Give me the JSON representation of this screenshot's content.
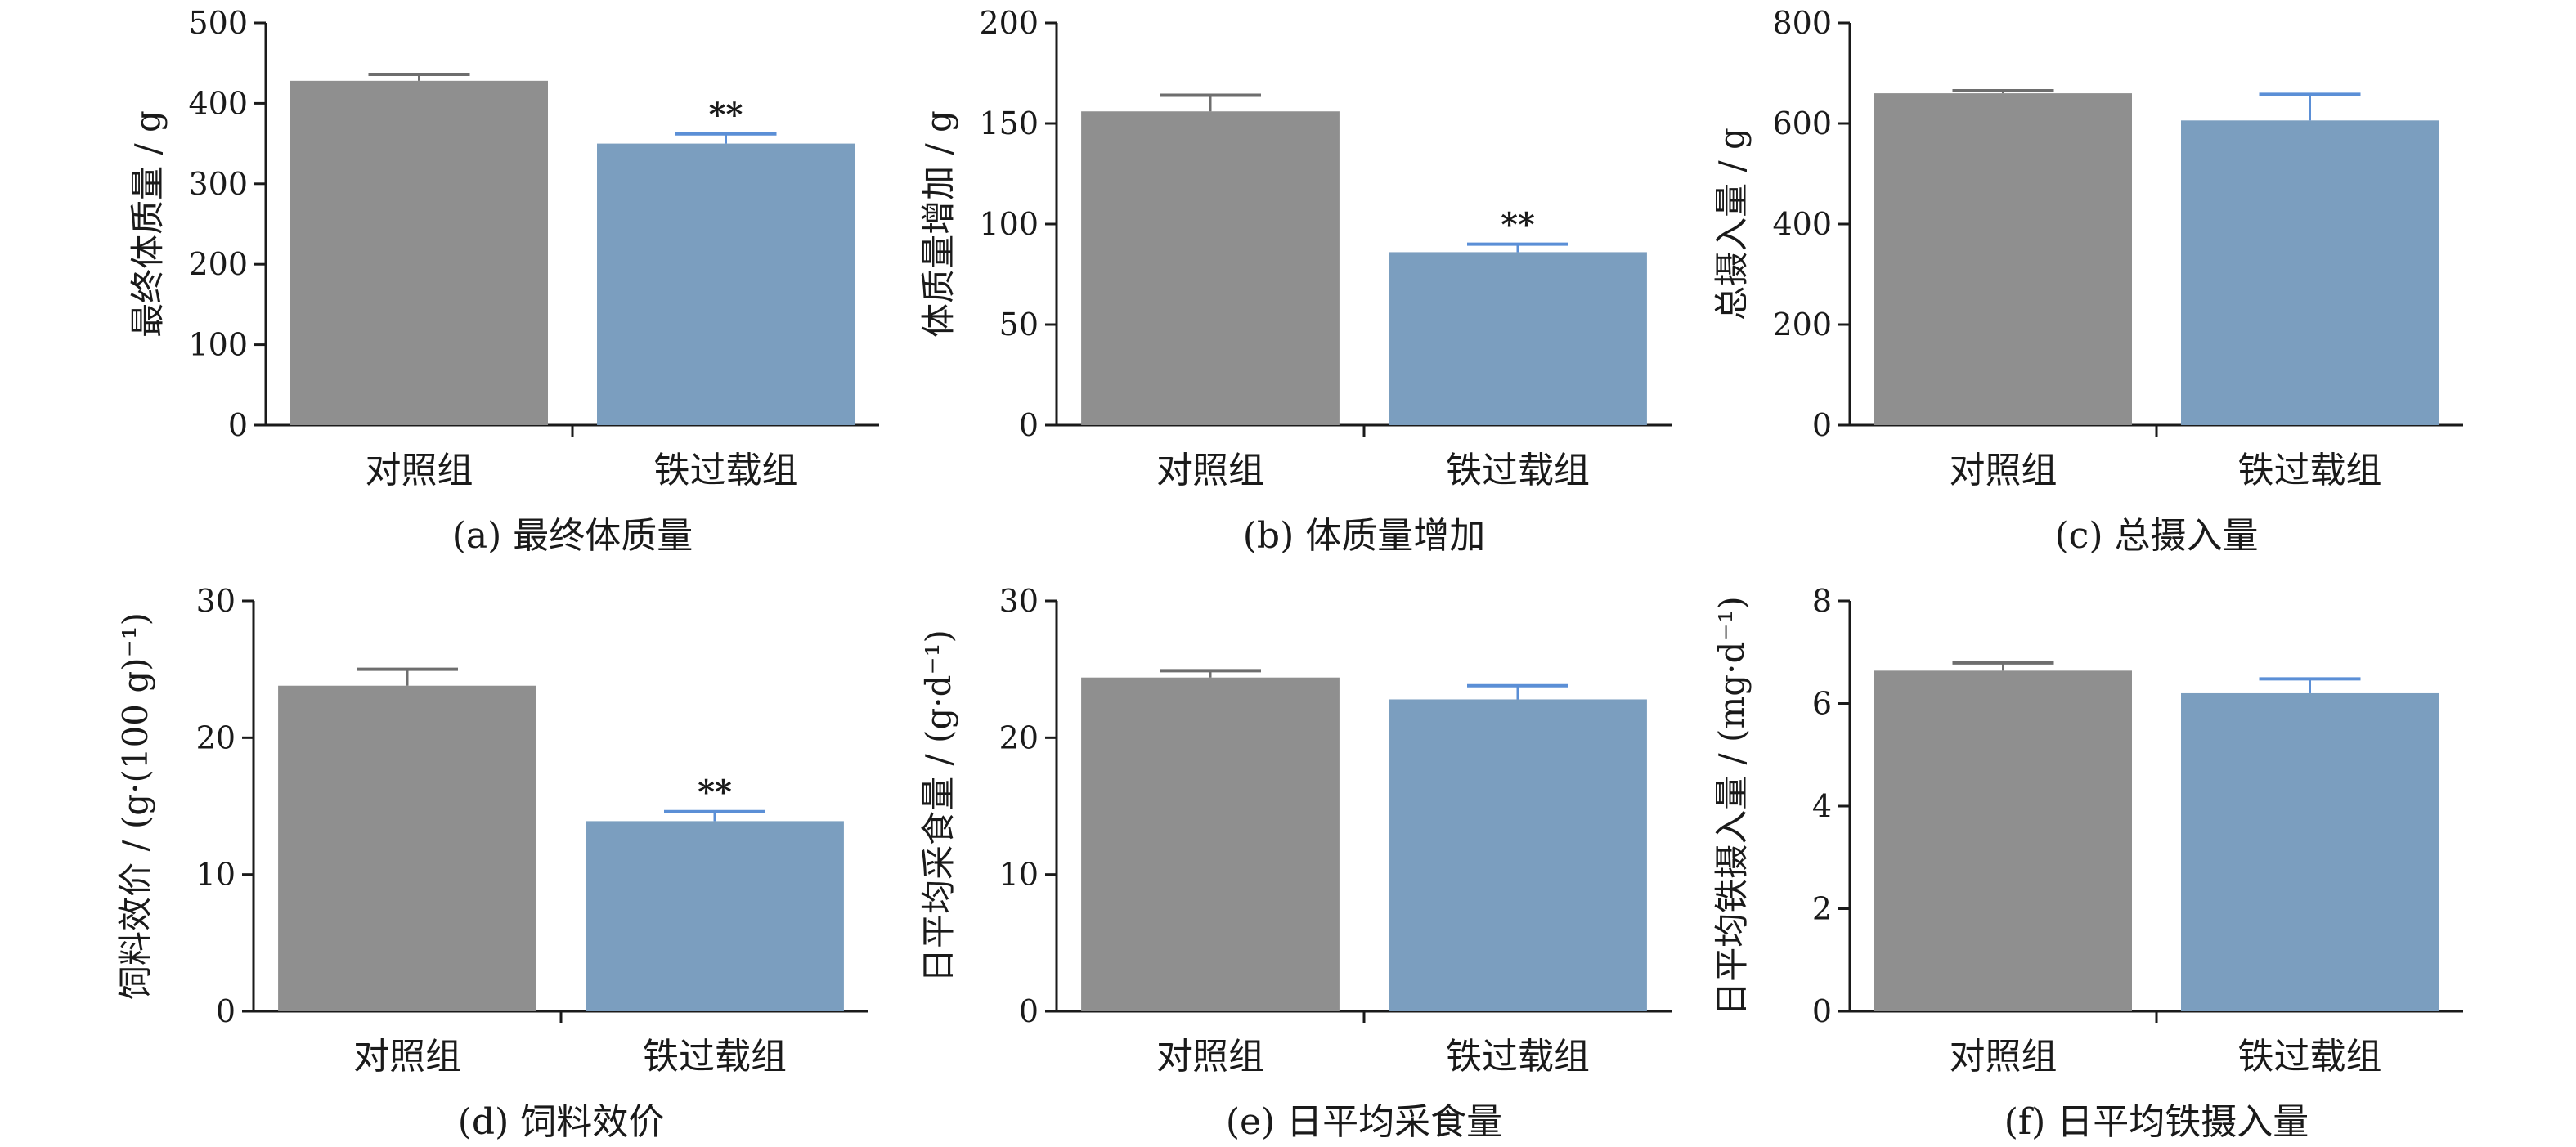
{
  "chart_data": [
    {
      "type": "bar",
      "caption": "(a) 最终体质量",
      "ylabel": "最终体质量 / g",
      "ylim": [
        0,
        500
      ],
      "yticks": [
        0,
        100,
        200,
        300,
        400,
        500
      ],
      "categories": [
        "对照组",
        "铁过载组"
      ],
      "values": [
        428,
        350
      ],
      "errors": [
        8,
        12
      ],
      "significance": [
        "",
        "**"
      ],
      "colors": [
        "#8f8f8f",
        "#7b9ebf"
      ]
    },
    {
      "type": "bar",
      "caption": "(b) 体质量增加",
      "ylabel": "体质量增加 / g",
      "ylim": [
        0,
        200
      ],
      "yticks": [
        0,
        50,
        100,
        150,
        200
      ],
      "categories": [
        "对照组",
        "铁过载组"
      ],
      "values": [
        156,
        86
      ],
      "errors": [
        8,
        4
      ],
      "significance": [
        "",
        "**"
      ],
      "colors": [
        "#8f8f8f",
        "#7b9ebf"
      ]
    },
    {
      "type": "bar",
      "caption": "(c) 总摄入量",
      "ylabel": "总摄入量 / g",
      "ylim": [
        0,
        800
      ],
      "yticks": [
        0,
        200,
        400,
        600,
        800
      ],
      "categories": [
        "对照组",
        "铁过载组"
      ],
      "values": [
        660,
        606
      ],
      "errors": [
        5,
        52
      ],
      "significance": [
        "",
        ""
      ],
      "colors": [
        "#8f8f8f",
        "#7b9ebf"
      ]
    },
    {
      "type": "bar",
      "caption": "(d) 饲料效价",
      "ylabel": "饲料效价 / (g·(100 g)⁻¹)",
      "ylim": [
        0,
        30
      ],
      "yticks": [
        0,
        10,
        20,
        30
      ],
      "categories": [
        "对照组",
        "铁过载组"
      ],
      "values": [
        23.8,
        13.9
      ],
      "errors": [
        1.2,
        0.7
      ],
      "significance": [
        "",
        "**"
      ],
      "colors": [
        "#8f8f8f",
        "#7b9ebf"
      ]
    },
    {
      "type": "bar",
      "caption": "(e) 日平均采食量",
      "ylabel": "日平均采食量 / (g·d⁻¹)",
      "ylim": [
        0,
        30
      ],
      "yticks": [
        0,
        10,
        20,
        30
      ],
      "categories": [
        "对照组",
        "铁过载组"
      ],
      "values": [
        24.4,
        22.8
      ],
      "errors": [
        0.5,
        1.0
      ],
      "significance": [
        "",
        ""
      ],
      "colors": [
        "#8f8f8f",
        "#7b9ebf"
      ]
    },
    {
      "type": "bar",
      "caption": "(f) 日平均铁摄入量",
      "ylabel": "日平均铁摄入量 / (mg·d⁻¹)",
      "ylim": [
        0,
        8
      ],
      "yticks": [
        0,
        2,
        4,
        6,
        8
      ],
      "categories": [
        "对照组",
        "铁过载组"
      ],
      "values": [
        6.64,
        6.2
      ],
      "errors": [
        0.15,
        0.28
      ],
      "significance": [
        "",
        ""
      ],
      "colors": [
        "#8f8f8f",
        "#7b9ebf"
      ]
    }
  ]
}
